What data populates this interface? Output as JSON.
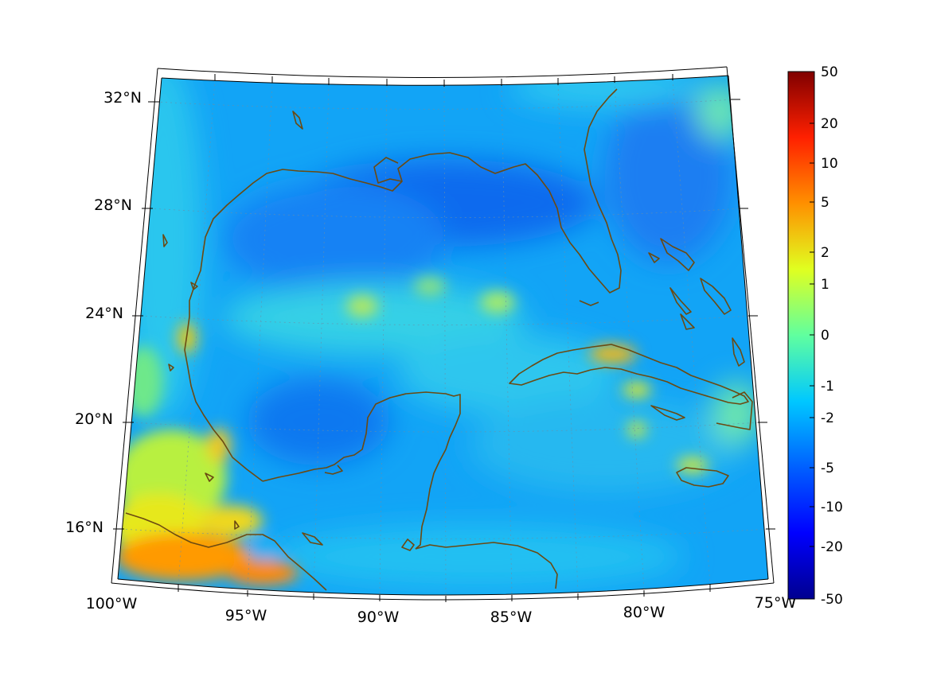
{
  "map": {
    "lat_labels": [
      "32°N",
      "28°N",
      "24°N",
      "20°N",
      "16°N"
    ],
    "lon_labels": [
      "100°W",
      "95°W",
      "90°W",
      "85°W",
      "80°W",
      "75°W"
    ]
  },
  "colorbar": {
    "colormap": "jet",
    "labels": [
      "50",
      "20",
      "10",
      "5",
      "2",
      "1",
      "0",
      "-1",
      "-2",
      "-5",
      "-10",
      "-20",
      "-50"
    ]
  },
  "colors": {
    "coastline": "#6b4a12",
    "background": "#ffffff"
  }
}
